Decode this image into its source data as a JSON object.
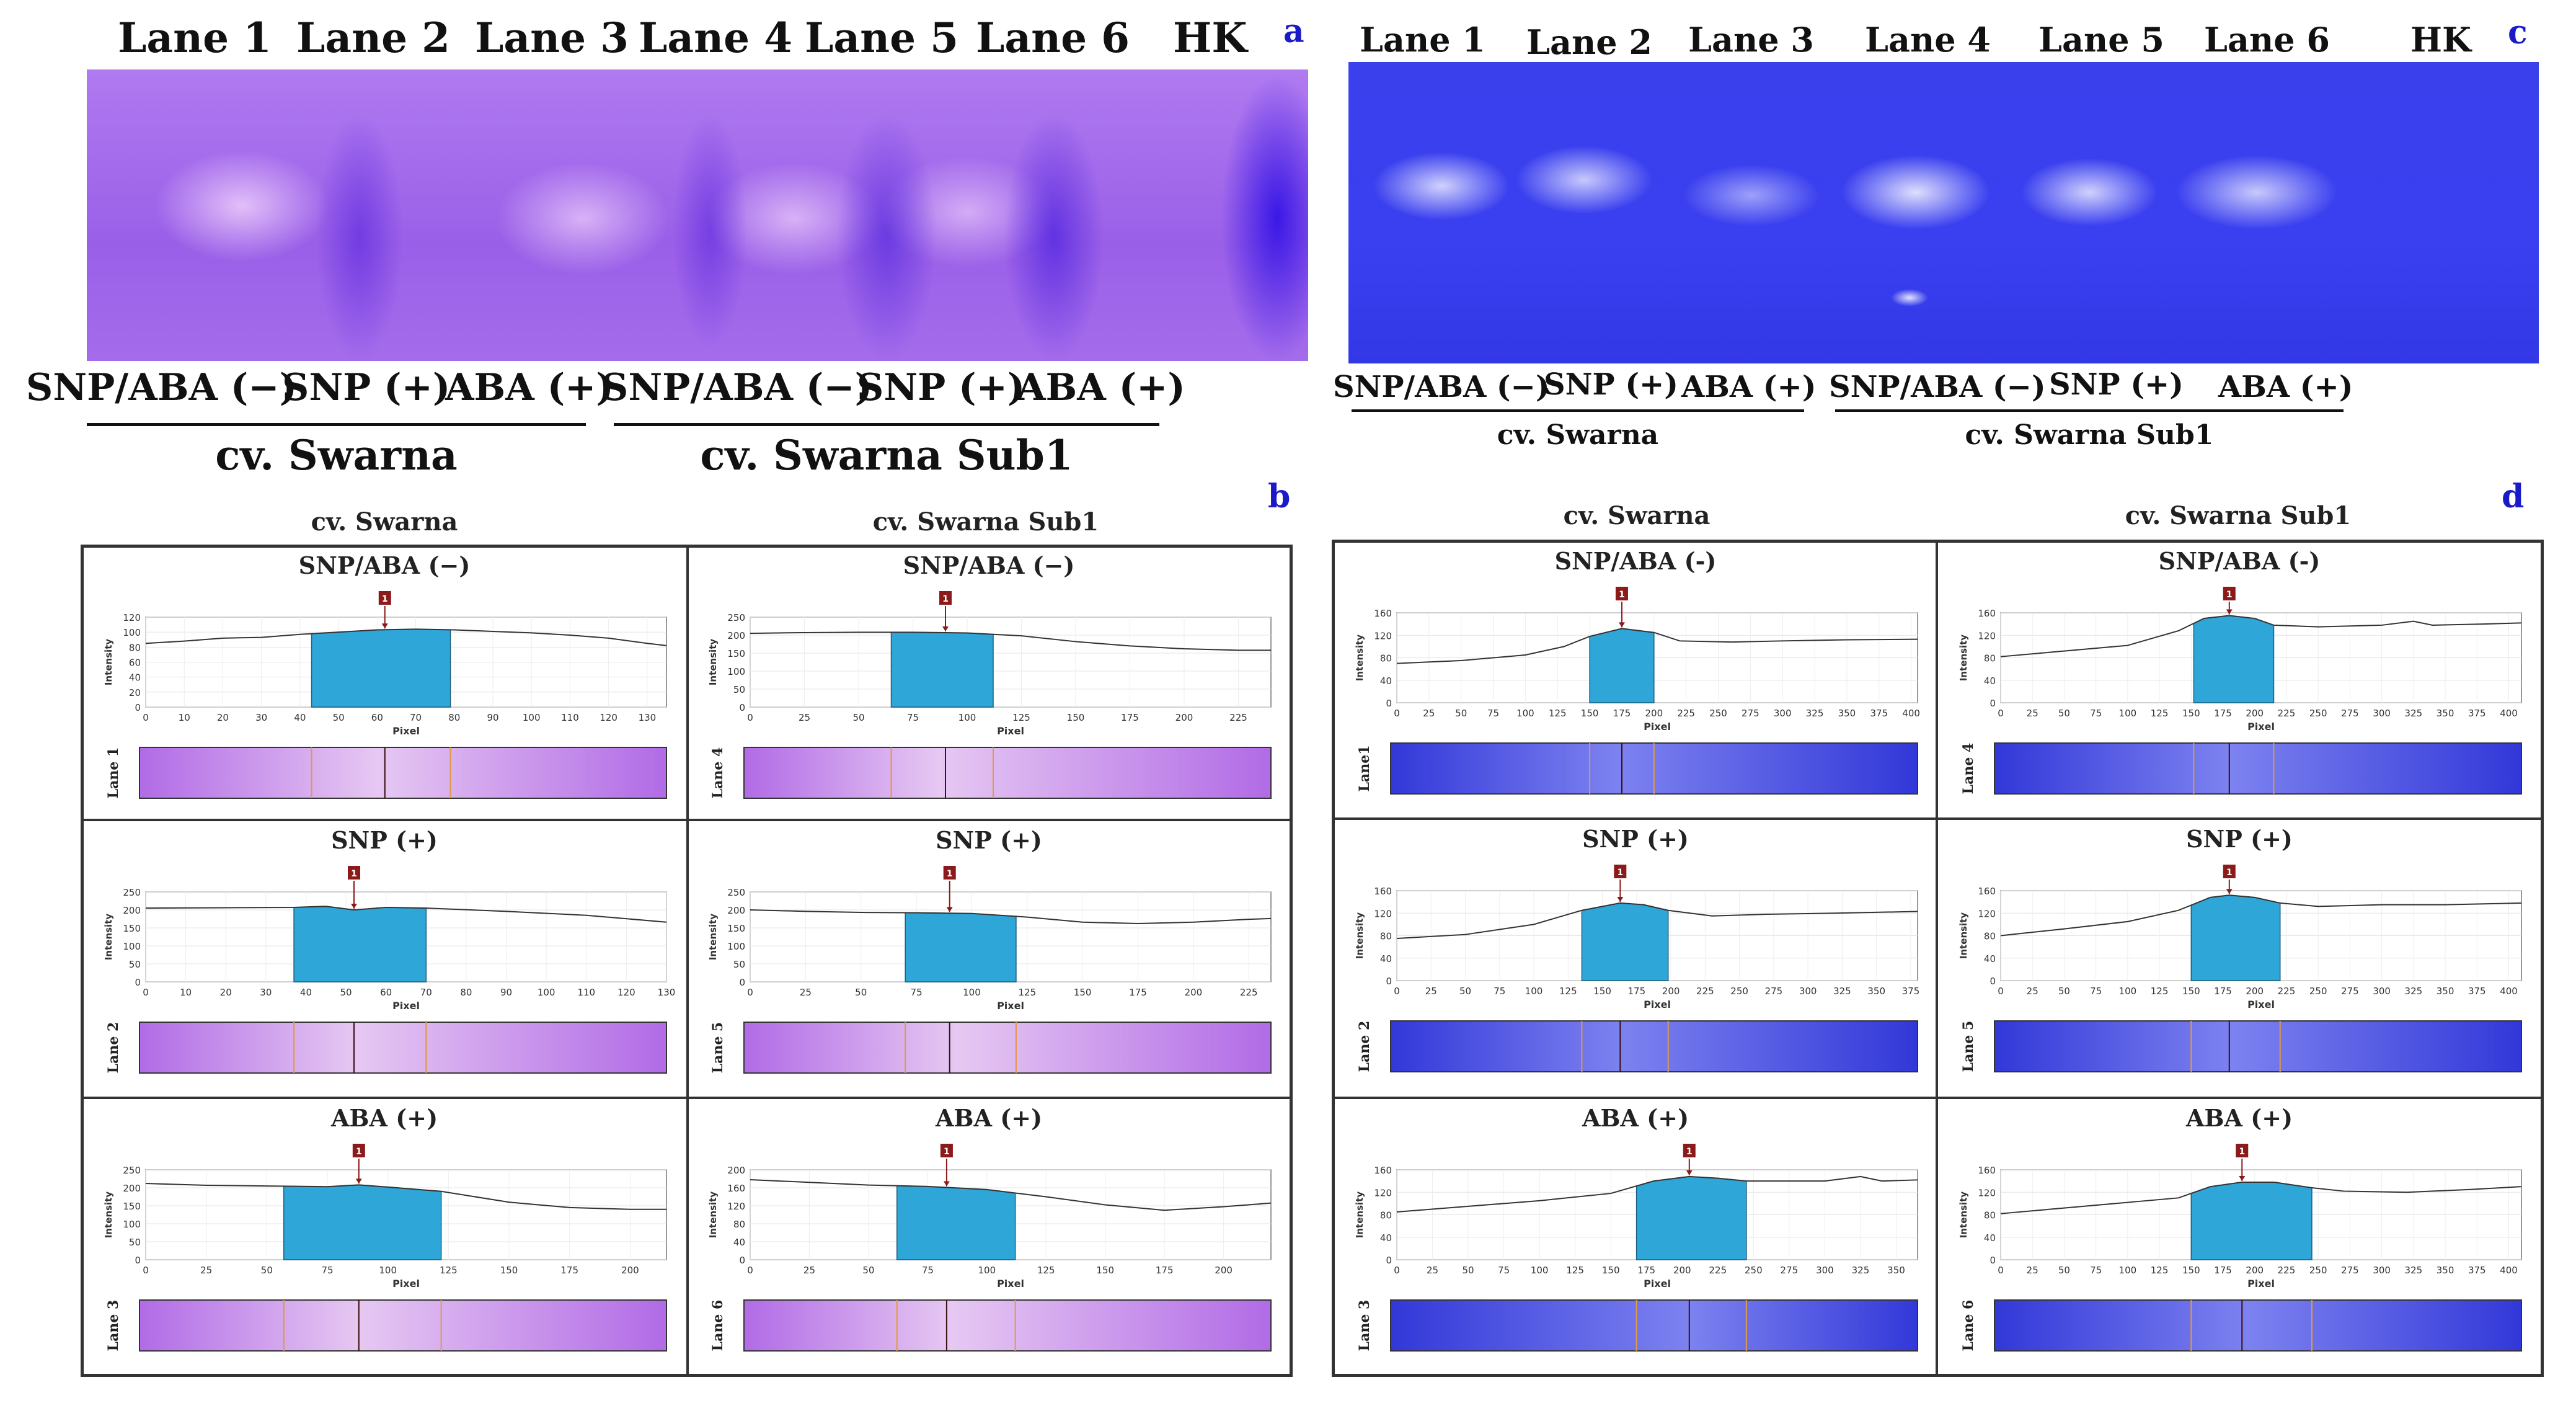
{
  "panel_a": {
    "letter": "a",
    "lanes": [
      "Lane 1",
      "Lane 2",
      "Lane 3",
      "Lane 4",
      "Lane 5",
      "Lane 6",
      "HK"
    ],
    "treatments": [
      "SNP/ABA (−)",
      "SNP (+)",
      "ABA (+)",
      "SNP/ABA (−)",
      "SNP (+)",
      "ABA (+)"
    ],
    "groups": [
      "cv. Swarna",
      "cv. Swarna Sub1"
    ],
    "gel_color": "#a25ff0"
  },
  "panel_c": {
    "letter": "c",
    "lanes": [
      "Lane 1",
      "Lane 2",
      "Lane 3",
      "Lane 4",
      "Lane 5",
      "Lane 6",
      "HK"
    ],
    "treatments": [
      "SNP/ABA (−)",
      "SNP (+)",
      "ABA (+)",
      "SNP/ABA (−)",
      "SNP (+)",
      "ABA (+)"
    ],
    "groups": [
      "cv. Swarna",
      "cv. Swarna Sub1"
    ],
    "gel_color": "#3a3ff0"
  },
  "panel_b": {
    "letter": "b",
    "col_headers": [
      "cv. Swarna",
      "cv. Swarna Sub1"
    ],
    "marker_label": "1",
    "axis_y_label": "Intensity",
    "axis_x_label": "Pixel",
    "plots": [
      {
        "title": "SNP/ABA (−)",
        "lane": "Lane 1",
        "xmax": 135,
        "xticks": [
          0,
          10,
          20,
          30,
          40,
          50,
          60,
          70,
          80,
          90,
          100,
          110,
          120,
          130
        ],
        "ymax": 120,
        "yticks": [
          0,
          20,
          40,
          60,
          80,
          100,
          120
        ],
        "peak": [
          43,
          79
        ],
        "marker": 62,
        "profile": [
          [
            0,
            85
          ],
          [
            10,
            88
          ],
          [
            20,
            92
          ],
          [
            30,
            93
          ],
          [
            40,
            97
          ],
          [
            50,
            100
          ],
          [
            60,
            103
          ],
          [
            70,
            104
          ],
          [
            80,
            103
          ],
          [
            90,
            101
          ],
          [
            100,
            99
          ],
          [
            110,
            96
          ],
          [
            120,
            92
          ],
          [
            130,
            85
          ],
          [
            135,
            82
          ]
        ]
      },
      {
        "title": "SNP/ABA (−)",
        "lane": "Lane 4",
        "xmax": 240,
        "xticks": [
          0,
          25,
          50,
          75,
          100,
          125,
          150,
          175,
          200,
          225
        ],
        "ymax": 250,
        "yticks": [
          0,
          50,
          100,
          150,
          200,
          250
        ],
        "peak": [
          65,
          112
        ],
        "marker": 90,
        "profile": [
          [
            0,
            205
          ],
          [
            25,
            207
          ],
          [
            50,
            208
          ],
          [
            75,
            208
          ],
          [
            100,
            206
          ],
          [
            125,
            198
          ],
          [
            150,
            182
          ],
          [
            175,
            170
          ],
          [
            200,
            162
          ],
          [
            225,
            158
          ],
          [
            240,
            158
          ]
        ]
      },
      {
        "title": "SNP (+)",
        "lane": "Lane 2",
        "xmax": 130,
        "xticks": [
          0,
          10,
          20,
          30,
          40,
          50,
          60,
          70,
          80,
          90,
          100,
          110,
          120,
          130
        ],
        "ymax": 250,
        "yticks": [
          0,
          50,
          100,
          150,
          200,
          250
        ],
        "peak": [
          37,
          70
        ],
        "marker": 52,
        "profile": [
          [
            0,
            205
          ],
          [
            20,
            206
          ],
          [
            37,
            207
          ],
          [
            45,
            210
          ],
          [
            52,
            200
          ],
          [
            60,
            207
          ],
          [
            70,
            205
          ],
          [
            90,
            196
          ],
          [
            110,
            185
          ],
          [
            130,
            166
          ]
        ]
      },
      {
        "title": "SNP (+)",
        "lane": "Lane 5",
        "xmax": 235,
        "xticks": [
          0,
          25,
          50,
          75,
          100,
          125,
          150,
          175,
          200,
          225
        ],
        "ymax": 250,
        "yticks": [
          0,
          50,
          100,
          150,
          200,
          250
        ],
        "peak": [
          70,
          120
        ],
        "marker": 90,
        "profile": [
          [
            0,
            200
          ],
          [
            25,
            196
          ],
          [
            50,
            193
          ],
          [
            75,
            192
          ],
          [
            100,
            190
          ],
          [
            125,
            180
          ],
          [
            150,
            166
          ],
          [
            175,
            162
          ],
          [
            200,
            166
          ],
          [
            225,
            174
          ],
          [
            235,
            176
          ]
        ]
      },
      {
        "title": "ABA (+)",
        "lane": "Lane 3",
        "xmax": 215,
        "xticks": [
          0,
          25,
          50,
          75,
          100,
          125,
          150,
          175,
          200
        ],
        "ymax": 250,
        "yticks": [
          0,
          50,
          100,
          150,
          200,
          250
        ],
        "peak": [
          57,
          122
        ],
        "marker": 88,
        "profile": [
          [
            0,
            212
          ],
          [
            25,
            207
          ],
          [
            50,
            205
          ],
          [
            75,
            203
          ],
          [
            88,
            208
          ],
          [
            100,
            202
          ],
          [
            122,
            190
          ],
          [
            150,
            160
          ],
          [
            175,
            145
          ],
          [
            200,
            140
          ],
          [
            215,
            140
          ]
        ]
      },
      {
        "title": "ABA (+)",
        "lane": "Lane 6",
        "xmax": 220,
        "xticks": [
          0,
          25,
          50,
          75,
          100,
          125,
          150,
          175,
          200
        ],
        "ymax": 200,
        "yticks": [
          0,
          40,
          80,
          120,
          160,
          200
        ],
        "peak": [
          62,
          112
        ],
        "marker": 83,
        "profile": [
          [
            0,
            178
          ],
          [
            25,
            172
          ],
          [
            50,
            166
          ],
          [
            75,
            163
          ],
          [
            100,
            156
          ],
          [
            125,
            140
          ],
          [
            150,
            122
          ],
          [
            175,
            110
          ],
          [
            200,
            118
          ],
          [
            220,
            126
          ]
        ]
      }
    ]
  },
  "panel_d": {
    "letter": "d",
    "col_headers": [
      "cv. Swarna",
      "cv. Swarna Sub1"
    ],
    "marker_label": "1",
    "axis_y_label": "Intensity",
    "axis_x_label": "Pixel",
    "plots": [
      {
        "title": "SNP/ABA (-)",
        "lane": "Lane1",
        "xmax": 405,
        "xticks": [
          0,
          25,
          50,
          75,
          100,
          125,
          150,
          175,
          200,
          225,
          250,
          275,
          300,
          325,
          350,
          375,
          400
        ],
        "ymax": 160,
        "yticks": [
          0,
          40,
          80,
          120,
          160
        ],
        "peak": [
          150,
          200
        ],
        "marker": 175,
        "profile": [
          [
            0,
            70
          ],
          [
            50,
            75
          ],
          [
            100,
            85
          ],
          [
            130,
            100
          ],
          [
            150,
            118
          ],
          [
            175,
            132
          ],
          [
            200,
            125
          ],
          [
            220,
            110
          ],
          [
            260,
            108
          ],
          [
            300,
            110
          ],
          [
            350,
            112
          ],
          [
            405,
            113
          ]
        ]
      },
      {
        "title": "SNP/ABA (-)",
        "lane": "Lane 4",
        "xmax": 410,
        "xticks": [
          0,
          25,
          50,
          75,
          100,
          125,
          150,
          175,
          200,
          225,
          250,
          275,
          300,
          325,
          350,
          375,
          400
        ],
        "ymax": 160,
        "yticks": [
          0,
          40,
          80,
          120,
          160
        ],
        "peak": [
          152,
          215
        ],
        "marker": 180,
        "profile": [
          [
            0,
            82
          ],
          [
            50,
            92
          ],
          [
            100,
            102
          ],
          [
            140,
            128
          ],
          [
            160,
            150
          ],
          [
            180,
            155
          ],
          [
            200,
            150
          ],
          [
            215,
            138
          ],
          [
            250,
            135
          ],
          [
            300,
            138
          ],
          [
            325,
            145
          ],
          [
            340,
            138
          ],
          [
            380,
            140
          ],
          [
            410,
            142
          ]
        ]
      },
      {
        "title": "SNP (+)",
        "lane": "Lane 2",
        "xmax": 380,
        "xticks": [
          0,
          25,
          50,
          75,
          100,
          125,
          150,
          175,
          200,
          225,
          250,
          275,
          300,
          325,
          350,
          375
        ],
        "ymax": 160,
        "yticks": [
          0,
          40,
          80,
          120,
          160
        ],
        "peak": [
          135,
          198
        ],
        "marker": 163,
        "profile": [
          [
            0,
            75
          ],
          [
            50,
            82
          ],
          [
            100,
            100
          ],
          [
            135,
            125
          ],
          [
            163,
            138
          ],
          [
            180,
            135
          ],
          [
            198,
            125
          ],
          [
            230,
            115
          ],
          [
            270,
            118
          ],
          [
            320,
            120
          ],
          [
            380,
            123
          ]
        ]
      },
      {
        "title": "SNP (+)",
        "lane": "Lane 5",
        "xmax": 410,
        "xticks": [
          0,
          25,
          50,
          75,
          100,
          125,
          150,
          175,
          200,
          225,
          250,
          275,
          300,
          325,
          350,
          375,
          400
        ],
        "ymax": 160,
        "yticks": [
          0,
          40,
          80,
          120,
          160
        ],
        "peak": [
          150,
          220
        ],
        "marker": 180,
        "profile": [
          [
            0,
            80
          ],
          [
            50,
            92
          ],
          [
            100,
            105
          ],
          [
            140,
            125
          ],
          [
            165,
            148
          ],
          [
            180,
            152
          ],
          [
            200,
            148
          ],
          [
            220,
            138
          ],
          [
            250,
            132
          ],
          [
            300,
            135
          ],
          [
            350,
            135
          ],
          [
            410,
            138
          ]
        ]
      },
      {
        "title": "ABA (+)",
        "lane": "Lane 3",
        "xmax": 365,
        "xticks": [
          0,
          25,
          50,
          75,
          100,
          125,
          150,
          175,
          200,
          225,
          250,
          275,
          300,
          325,
          350
        ],
        "ymax": 160,
        "yticks": [
          0,
          40,
          80,
          120,
          160
        ],
        "peak": [
          168,
          245
        ],
        "marker": 205,
        "profile": [
          [
            0,
            85
          ],
          [
            50,
            95
          ],
          [
            100,
            105
          ],
          [
            150,
            118
          ],
          [
            180,
            140
          ],
          [
            205,
            148
          ],
          [
            225,
            145
          ],
          [
            245,
            140
          ],
          [
            270,
            140
          ],
          [
            300,
            140
          ],
          [
            325,
            148
          ],
          [
            340,
            140
          ],
          [
            365,
            142
          ]
        ]
      },
      {
        "title": "ABA (+)",
        "lane": "Lane 6",
        "xmax": 410,
        "xticks": [
          0,
          25,
          50,
          75,
          100,
          125,
          150,
          175,
          200,
          225,
          250,
          275,
          300,
          325,
          350,
          375,
          400
        ],
        "ymax": 160,
        "yticks": [
          0,
          40,
          80,
          120,
          160
        ],
        "peak": [
          150,
          245
        ],
        "marker": 190,
        "profile": [
          [
            0,
            82
          ],
          [
            50,
            92
          ],
          [
            100,
            102
          ],
          [
            140,
            110
          ],
          [
            165,
            130
          ],
          [
            190,
            138
          ],
          [
            215,
            138
          ],
          [
            245,
            128
          ],
          [
            270,
            122
          ],
          [
            320,
            120
          ],
          [
            370,
            125
          ],
          [
            410,
            130
          ]
        ]
      }
    ]
  }
}
